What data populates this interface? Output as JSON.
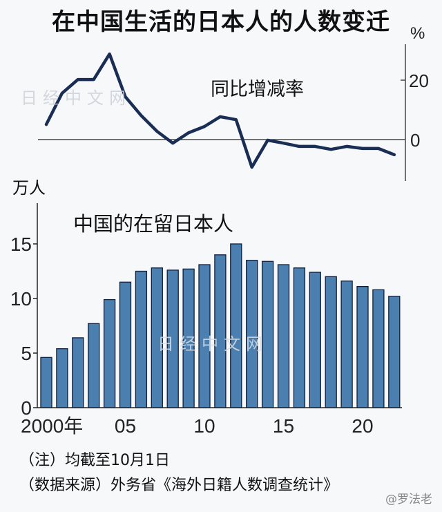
{
  "title": "在中国生活的日本人的人数变迁",
  "colors": {
    "line": "#1a2d55",
    "bar_fill": "#4a7fb0",
    "bar_stroke": "#0f1e3a",
    "axis": "#333333"
  },
  "line_chart": {
    "label": "同比增减率",
    "unit": "%",
    "y_ticks": [
      "20",
      "0"
    ]
  },
  "bar_chart": {
    "label": "中国的在留日本人",
    "unit": "万人",
    "y_ticks": [
      "15",
      "10",
      "5",
      "0"
    ],
    "x_ticks": [
      "2000年",
      "05",
      "10",
      "15",
      "20"
    ]
  },
  "notes": {
    "note": "（注）均截至10月1日",
    "source": "（数据来源）外务省《海外日籍人数调查统计》"
  },
  "watermark": "日经中文网",
  "credit": "@罗法老",
  "chart_data": [
    {
      "type": "line",
      "title": "同比增减率",
      "ylabel": "%",
      "x": [
        2000,
        2001,
        2002,
        2003,
        2004,
        2005,
        2006,
        2007,
        2008,
        2009,
        2010,
        2011,
        2012,
        2013,
        2014,
        2015,
        2016,
        2017,
        2018,
        2019,
        2020,
        2021,
        2022
      ],
      "values": [
        5.1,
        15.6,
        20.2,
        20.2,
        28.8,
        14.4,
        8.1,
        2.8,
        -1.2,
        2.3,
        4.4,
        7.7,
        6.7,
        -9.3,
        -0.2,
        -1.2,
        -2.3,
        -2.3,
        -3.3,
        -2.3,
        -3.0,
        -3.0,
        -5.1
      ],
      "yticks": [
        0,
        20
      ],
      "axis_position": "right"
    },
    {
      "type": "bar",
      "title": "中国的在留日本人",
      "ylabel": "万人",
      "categories": [
        "2000",
        "2001",
        "2002",
        "2003",
        "2004",
        "2005",
        "2006",
        "2007",
        "2008",
        "2009",
        "2010",
        "2011",
        "2012",
        "2013",
        "2014",
        "2015",
        "2016",
        "2017",
        "2018",
        "2019",
        "2020",
        "2021",
        "2022"
      ],
      "values": [
        4.6,
        5.4,
        6.4,
        7.7,
        9.9,
        11.5,
        12.5,
        12.8,
        12.6,
        12.7,
        13.1,
        14.0,
        15.0,
        13.5,
        13.4,
        13.1,
        12.8,
        12.4,
        12.0,
        11.6,
        11.1,
        10.8,
        10.2
      ],
      "ylim": [
        0,
        18
      ],
      "yticks": [
        0,
        5,
        10,
        15
      ],
      "xtick_labels": [
        "2000年",
        "05",
        "10",
        "15",
        "20"
      ]
    }
  ]
}
